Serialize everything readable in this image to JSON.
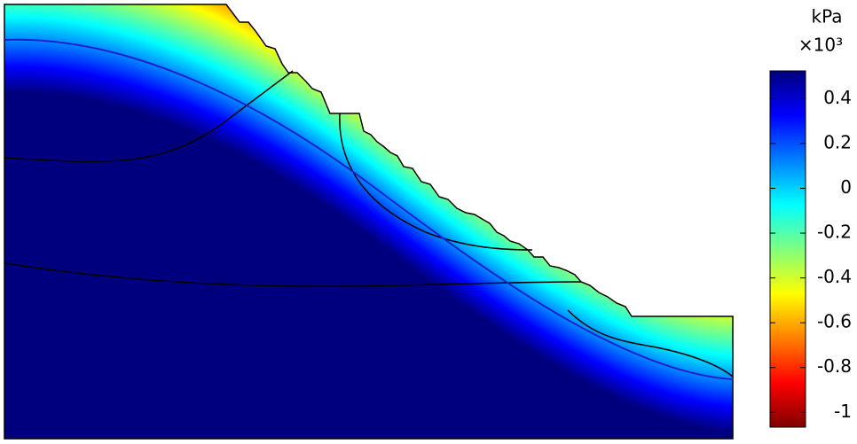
{
  "chart_data": {
    "type": "contour",
    "colorbar_unit": "kPa",
    "colorbar_multiplier": "×10³",
    "clim": [
      -1.066,
      0.524
    ],
    "cticks": [
      0.4,
      0.2,
      0,
      -0.2,
      -0.4,
      -0.6,
      -0.8,
      -1
    ]
  }
}
